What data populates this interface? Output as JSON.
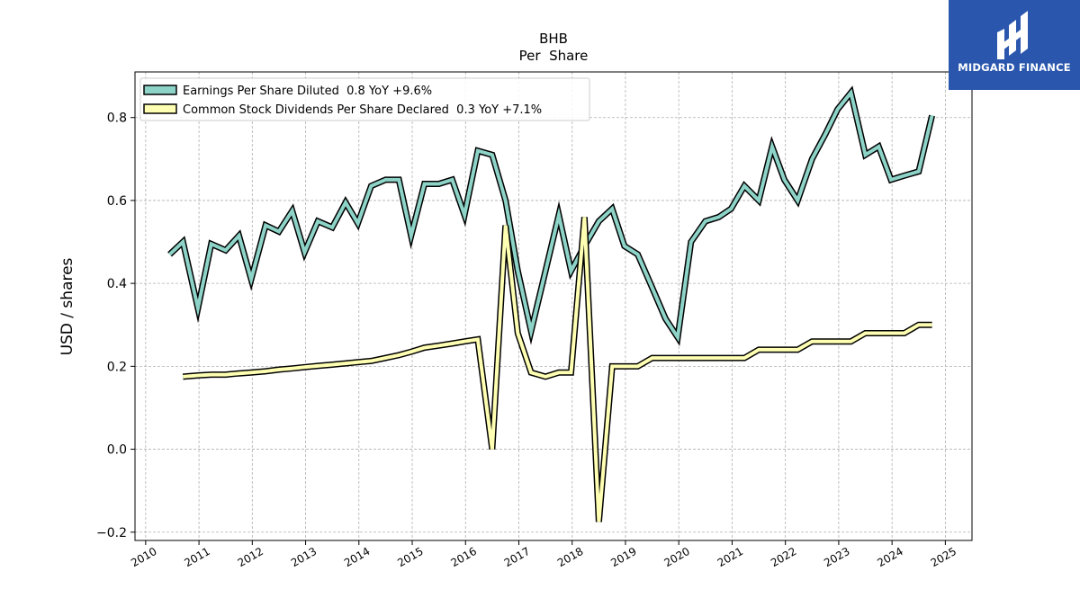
{
  "chart_data": {
    "type": "line",
    "title": "BHB",
    "subtitle": "Per  Share",
    "ylabel": "USD / shares",
    "xlabel": "",
    "xlim": [
      2009.8,
      2025.5
    ],
    "ylim": [
      -0.22,
      0.91
    ],
    "grid": true,
    "legend_position": "top-left",
    "x_ticks": [
      "2010",
      "2011",
      "2012",
      "2013",
      "2014",
      "2015",
      "2016",
      "2017",
      "2018",
      "2019",
      "2020",
      "2021",
      "2022",
      "2023",
      "2024",
      "2025"
    ],
    "y_ticks": [
      "−0.2",
      "0.0",
      "0.2",
      "0.4",
      "0.6",
      "0.8"
    ],
    "series": [
      {
        "name": "Earnings Per Share Diluted  0.8 YoY +9.6%",
        "color": "#8dd3c7",
        "points": [
          [
            2010.45,
            0.47
          ],
          [
            2010.7,
            0.5
          ],
          [
            2010.98,
            0.34
          ],
          [
            2011.23,
            0.495
          ],
          [
            2011.5,
            0.48
          ],
          [
            2011.75,
            0.515
          ],
          [
            2011.98,
            0.41
          ],
          [
            2012.25,
            0.54
          ],
          [
            2012.5,
            0.525
          ],
          [
            2012.75,
            0.575
          ],
          [
            2012.98,
            0.475
          ],
          [
            2013.23,
            0.55
          ],
          [
            2013.5,
            0.535
          ],
          [
            2013.75,
            0.595
          ],
          [
            2013.98,
            0.545
          ],
          [
            2014.23,
            0.635
          ],
          [
            2014.5,
            0.65
          ],
          [
            2014.75,
            0.65
          ],
          [
            2014.98,
            0.515
          ],
          [
            2015.23,
            0.64
          ],
          [
            2015.5,
            0.64
          ],
          [
            2015.75,
            0.65
          ],
          [
            2015.98,
            0.565
          ],
          [
            2016.23,
            0.72
          ],
          [
            2016.5,
            0.71
          ],
          [
            2016.75,
            0.6
          ],
          [
            2016.98,
            0.43
          ],
          [
            2017.23,
            0.285
          ],
          [
            2017.5,
            0.43
          ],
          [
            2017.75,
            0.565
          ],
          [
            2017.98,
            0.43
          ],
          [
            2018.23,
            0.49
          ],
          [
            2018.5,
            0.55
          ],
          [
            2018.75,
            0.58
          ],
          [
            2018.98,
            0.49
          ],
          [
            2019.23,
            0.47
          ],
          [
            2019.5,
            0.39
          ],
          [
            2019.75,
            0.315
          ],
          [
            2019.98,
            0.27
          ],
          [
            2020.23,
            0.5
          ],
          [
            2020.5,
            0.55
          ],
          [
            2020.75,
            0.56
          ],
          [
            2020.98,
            0.58
          ],
          [
            2021.23,
            0.635
          ],
          [
            2021.5,
            0.6
          ],
          [
            2021.75,
            0.73
          ],
          [
            2021.98,
            0.65
          ],
          [
            2022.23,
            0.6
          ],
          [
            2022.5,
            0.7
          ],
          [
            2022.75,
            0.76
          ],
          [
            2022.98,
            0.82
          ],
          [
            2023.23,
            0.86
          ],
          [
            2023.5,
            0.71
          ],
          [
            2023.75,
            0.73
          ],
          [
            2023.98,
            0.65
          ],
          [
            2024.23,
            0.66
          ],
          [
            2024.5,
            0.67
          ],
          [
            2024.75,
            0.805
          ]
        ]
      },
      {
        "name": "Common Stock Dividends Per Share Declared  0.3 YoY +7.1%",
        "color": "#ffffb3",
        "points": [
          [
            2010.7,
            0.175
          ],
          [
            2010.98,
            0.178
          ],
          [
            2011.23,
            0.18
          ],
          [
            2011.5,
            0.18
          ],
          [
            2011.75,
            0.183
          ],
          [
            2011.98,
            0.185
          ],
          [
            2012.25,
            0.188
          ],
          [
            2012.5,
            0.192
          ],
          [
            2012.75,
            0.195
          ],
          [
            2012.98,
            0.198
          ],
          [
            2013.23,
            0.201
          ],
          [
            2013.5,
            0.204
          ],
          [
            2013.75,
            0.207
          ],
          [
            2013.98,
            0.21
          ],
          [
            2014.23,
            0.213
          ],
          [
            2014.5,
            0.22
          ],
          [
            2014.75,
            0.227
          ],
          [
            2014.98,
            0.235
          ],
          [
            2015.23,
            0.245
          ],
          [
            2015.5,
            0.25
          ],
          [
            2015.75,
            0.255
          ],
          [
            2015.98,
            0.26
          ],
          [
            2016.23,
            0.265
          ],
          [
            2016.5,
            0.0
          ],
          [
            2016.75,
            0.54
          ],
          [
            2016.98,
            0.28
          ],
          [
            2017.23,
            0.185
          ],
          [
            2017.5,
            0.175
          ],
          [
            2017.75,
            0.185
          ],
          [
            2017.98,
            0.185
          ],
          [
            2018.23,
            0.56
          ],
          [
            2018.5,
            -0.175
          ],
          [
            2018.75,
            0.2
          ],
          [
            2018.98,
            0.2
          ],
          [
            2019.23,
            0.2
          ],
          [
            2019.5,
            0.22
          ],
          [
            2019.75,
            0.22
          ],
          [
            2019.98,
            0.22
          ],
          [
            2020.23,
            0.22
          ],
          [
            2020.5,
            0.22
          ],
          [
            2020.75,
            0.22
          ],
          [
            2020.98,
            0.22
          ],
          [
            2021.23,
            0.22
          ],
          [
            2021.5,
            0.24
          ],
          [
            2021.75,
            0.24
          ],
          [
            2021.98,
            0.24
          ],
          [
            2022.23,
            0.24
          ],
          [
            2022.5,
            0.26
          ],
          [
            2022.75,
            0.26
          ],
          [
            2022.98,
            0.26
          ],
          [
            2023.23,
            0.26
          ],
          [
            2023.5,
            0.28
          ],
          [
            2023.75,
            0.28
          ],
          [
            2023.98,
            0.28
          ],
          [
            2024.23,
            0.28
          ],
          [
            2024.5,
            0.3
          ],
          [
            2024.75,
            0.3
          ]
        ]
      }
    ]
  },
  "logo": {
    "text": "MIDGARD FINANCE",
    "color": "#2a57ad"
  }
}
